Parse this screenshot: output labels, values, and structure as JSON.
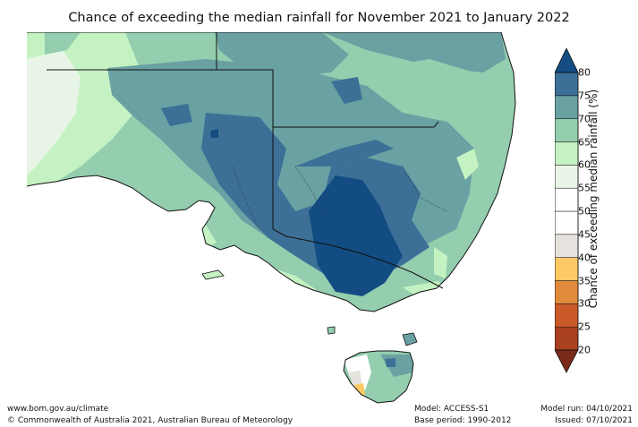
{
  "title": "Chance of exceeding the median rainfall for November 2021 to January 2022",
  "colorbar": {
    "label": "Chance of exceeding median rainfall (%)",
    "ticks": [
      "80",
      "75",
      "70",
      "65",
      "60",
      "55",
      "50",
      "45",
      "40",
      "35",
      "30",
      "25",
      "20"
    ],
    "bands": [
      {
        "from": 20,
        "to": 25,
        "color": "#a9401f"
      },
      {
        "from": 25,
        "to": 30,
        "color": "#cb5a2a"
      },
      {
        "from": 30,
        "to": 35,
        "color": "#e08a3c"
      },
      {
        "from": 35,
        "to": 40,
        "color": "#fdc964"
      },
      {
        "from": 40,
        "to": 45,
        "color": "#e6e3de"
      },
      {
        "from": 45,
        "to": 50,
        "color": "#ffffff"
      },
      {
        "from": 50,
        "to": 55,
        "color": "#ffffff"
      },
      {
        "from": 55,
        "to": 60,
        "color": "#e8f5e6"
      },
      {
        "from": 60,
        "to": 65,
        "color": "#c5f2c2"
      },
      {
        "from": 65,
        "to": 70,
        "color": "#94ceaf"
      },
      {
        "from": 70,
        "to": 75,
        "color": "#6aa1a2"
      },
      {
        "from": 75,
        "to": 80,
        "color": "#3d7097"
      }
    ],
    "under_color": "#7a2a18",
    "over_color": "#124c82"
  },
  "footer": {
    "website": "www.bom.gov.au/climate",
    "copyright": "© Commonwealth of Australia 2021, Australian Bureau of Meteorology",
    "model": "Model: ACCESS-S1",
    "base_period": "Base period: 1990-2012",
    "model_run": "Model run: 04/10/2021",
    "issued": "Issued: 07/10/2021"
  }
}
